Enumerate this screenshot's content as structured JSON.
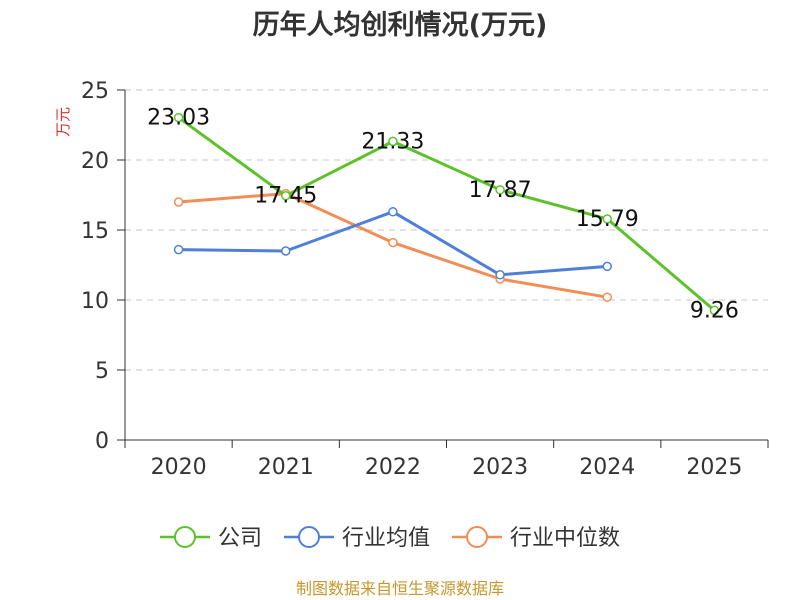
{
  "chart_data": {
    "type": "line",
    "title": "历年人均创利情况(万元)",
    "ylabel": "万元",
    "xlabel": "",
    "categories": [
      "2020",
      "2021",
      "2022",
      "2023",
      "2024",
      "2025"
    ],
    "ylim": [
      0,
      25
    ],
    "yticks": [
      0,
      5,
      10,
      15,
      20,
      25
    ],
    "grid": true,
    "legend_position": "bottom",
    "series": [
      {
        "name": "公司",
        "color": "#5dc22a",
        "values": [
          23.03,
          17.45,
          21.33,
          17.87,
          15.79,
          9.26
        ],
        "show_labels": true
      },
      {
        "name": "行业均值",
        "color": "#4f7fdb",
        "values": [
          13.6,
          13.5,
          16.3,
          11.8,
          12.4,
          null
        ],
        "show_labels": false
      },
      {
        "name": "行业中位数",
        "color": "#f28d55",
        "values": [
          17.0,
          17.6,
          14.1,
          11.5,
          10.2,
          null
        ],
        "show_labels": false
      }
    ],
    "data_labels": [
      "23.03",
      "17.45",
      "21.33",
      "17.87",
      "15.79",
      "9.26"
    ]
  },
  "source": "制图数据来自恒生聚源数据库"
}
